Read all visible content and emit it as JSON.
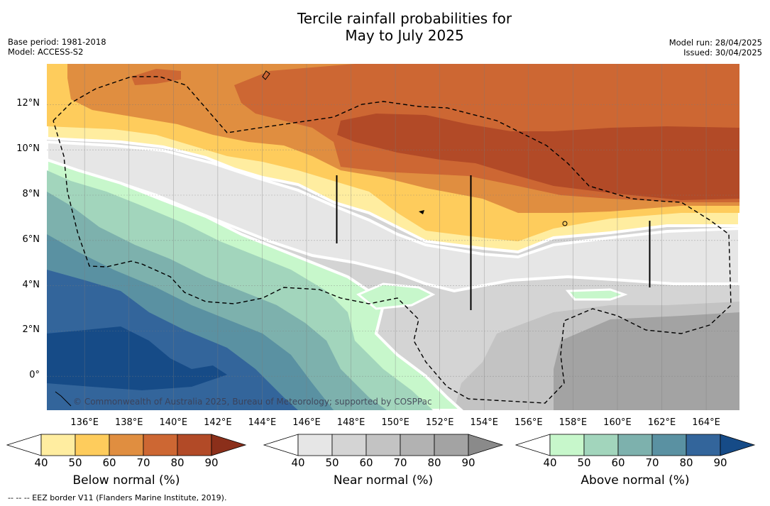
{
  "title": {
    "line1": "Tercile rainfall probabilities for",
    "line2": "May to July 2025"
  },
  "meta": {
    "base_period": "Base period: 1981-2018",
    "model": "Model: ACCESS-S2",
    "model_run": "Model run: 28/04/2025",
    "issued": "Issued: 30/04/2025"
  },
  "map": {
    "lat_labels": [
      "12°N",
      "10°N",
      "8°N",
      "6°N",
      "4°N",
      "2°N",
      "0°"
    ],
    "lon_labels": [
      "136°E",
      "138°E",
      "140°E",
      "142°E",
      "144°E",
      "146°E",
      "148°E",
      "150°E",
      "152°E",
      "154°E",
      "156°E",
      "158°E",
      "160°E",
      "162°E",
      "164°E"
    ],
    "lat_range": [
      -1.5,
      13.8
    ],
    "lon_range": [
      134.3,
      165.5
    ],
    "credit": "© Commonwealth of Australia 2025, Bureau of Meteorology; supported by COSPPac",
    "colors": {
      "below": [
        "#ffeda0",
        "#fecc5c",
        "#e08e40",
        "#cd6733",
        "#b24a27",
        "#8b2f1a"
      ],
      "near": [
        "#e6e6e6",
        "#d4d4d4",
        "#c3c3c3",
        "#b2b2b2",
        "#a3a3a3",
        "#8a8a8a"
      ],
      "above": [
        "#c7f7cb",
        "#a2d5bc",
        "#7db1ad",
        "#5a91a2",
        "#33659b",
        "#164b87"
      ]
    }
  },
  "colorbars": [
    {
      "title": "Below normal (%)",
      "ticks": [
        "40",
        "50",
        "60",
        "70",
        "80",
        "90"
      ]
    },
    {
      "title": "Near normal (%)",
      "ticks": [
        "40",
        "50",
        "60",
        "70",
        "80",
        "90"
      ]
    },
    {
      "title": "Above normal (%)",
      "ticks": [
        "40",
        "50",
        "60",
        "70",
        "80",
        "90"
      ]
    }
  ],
  "footnote": "--  --  -- EEZ border V11 (Flanders Marine Institute, 2019)."
}
